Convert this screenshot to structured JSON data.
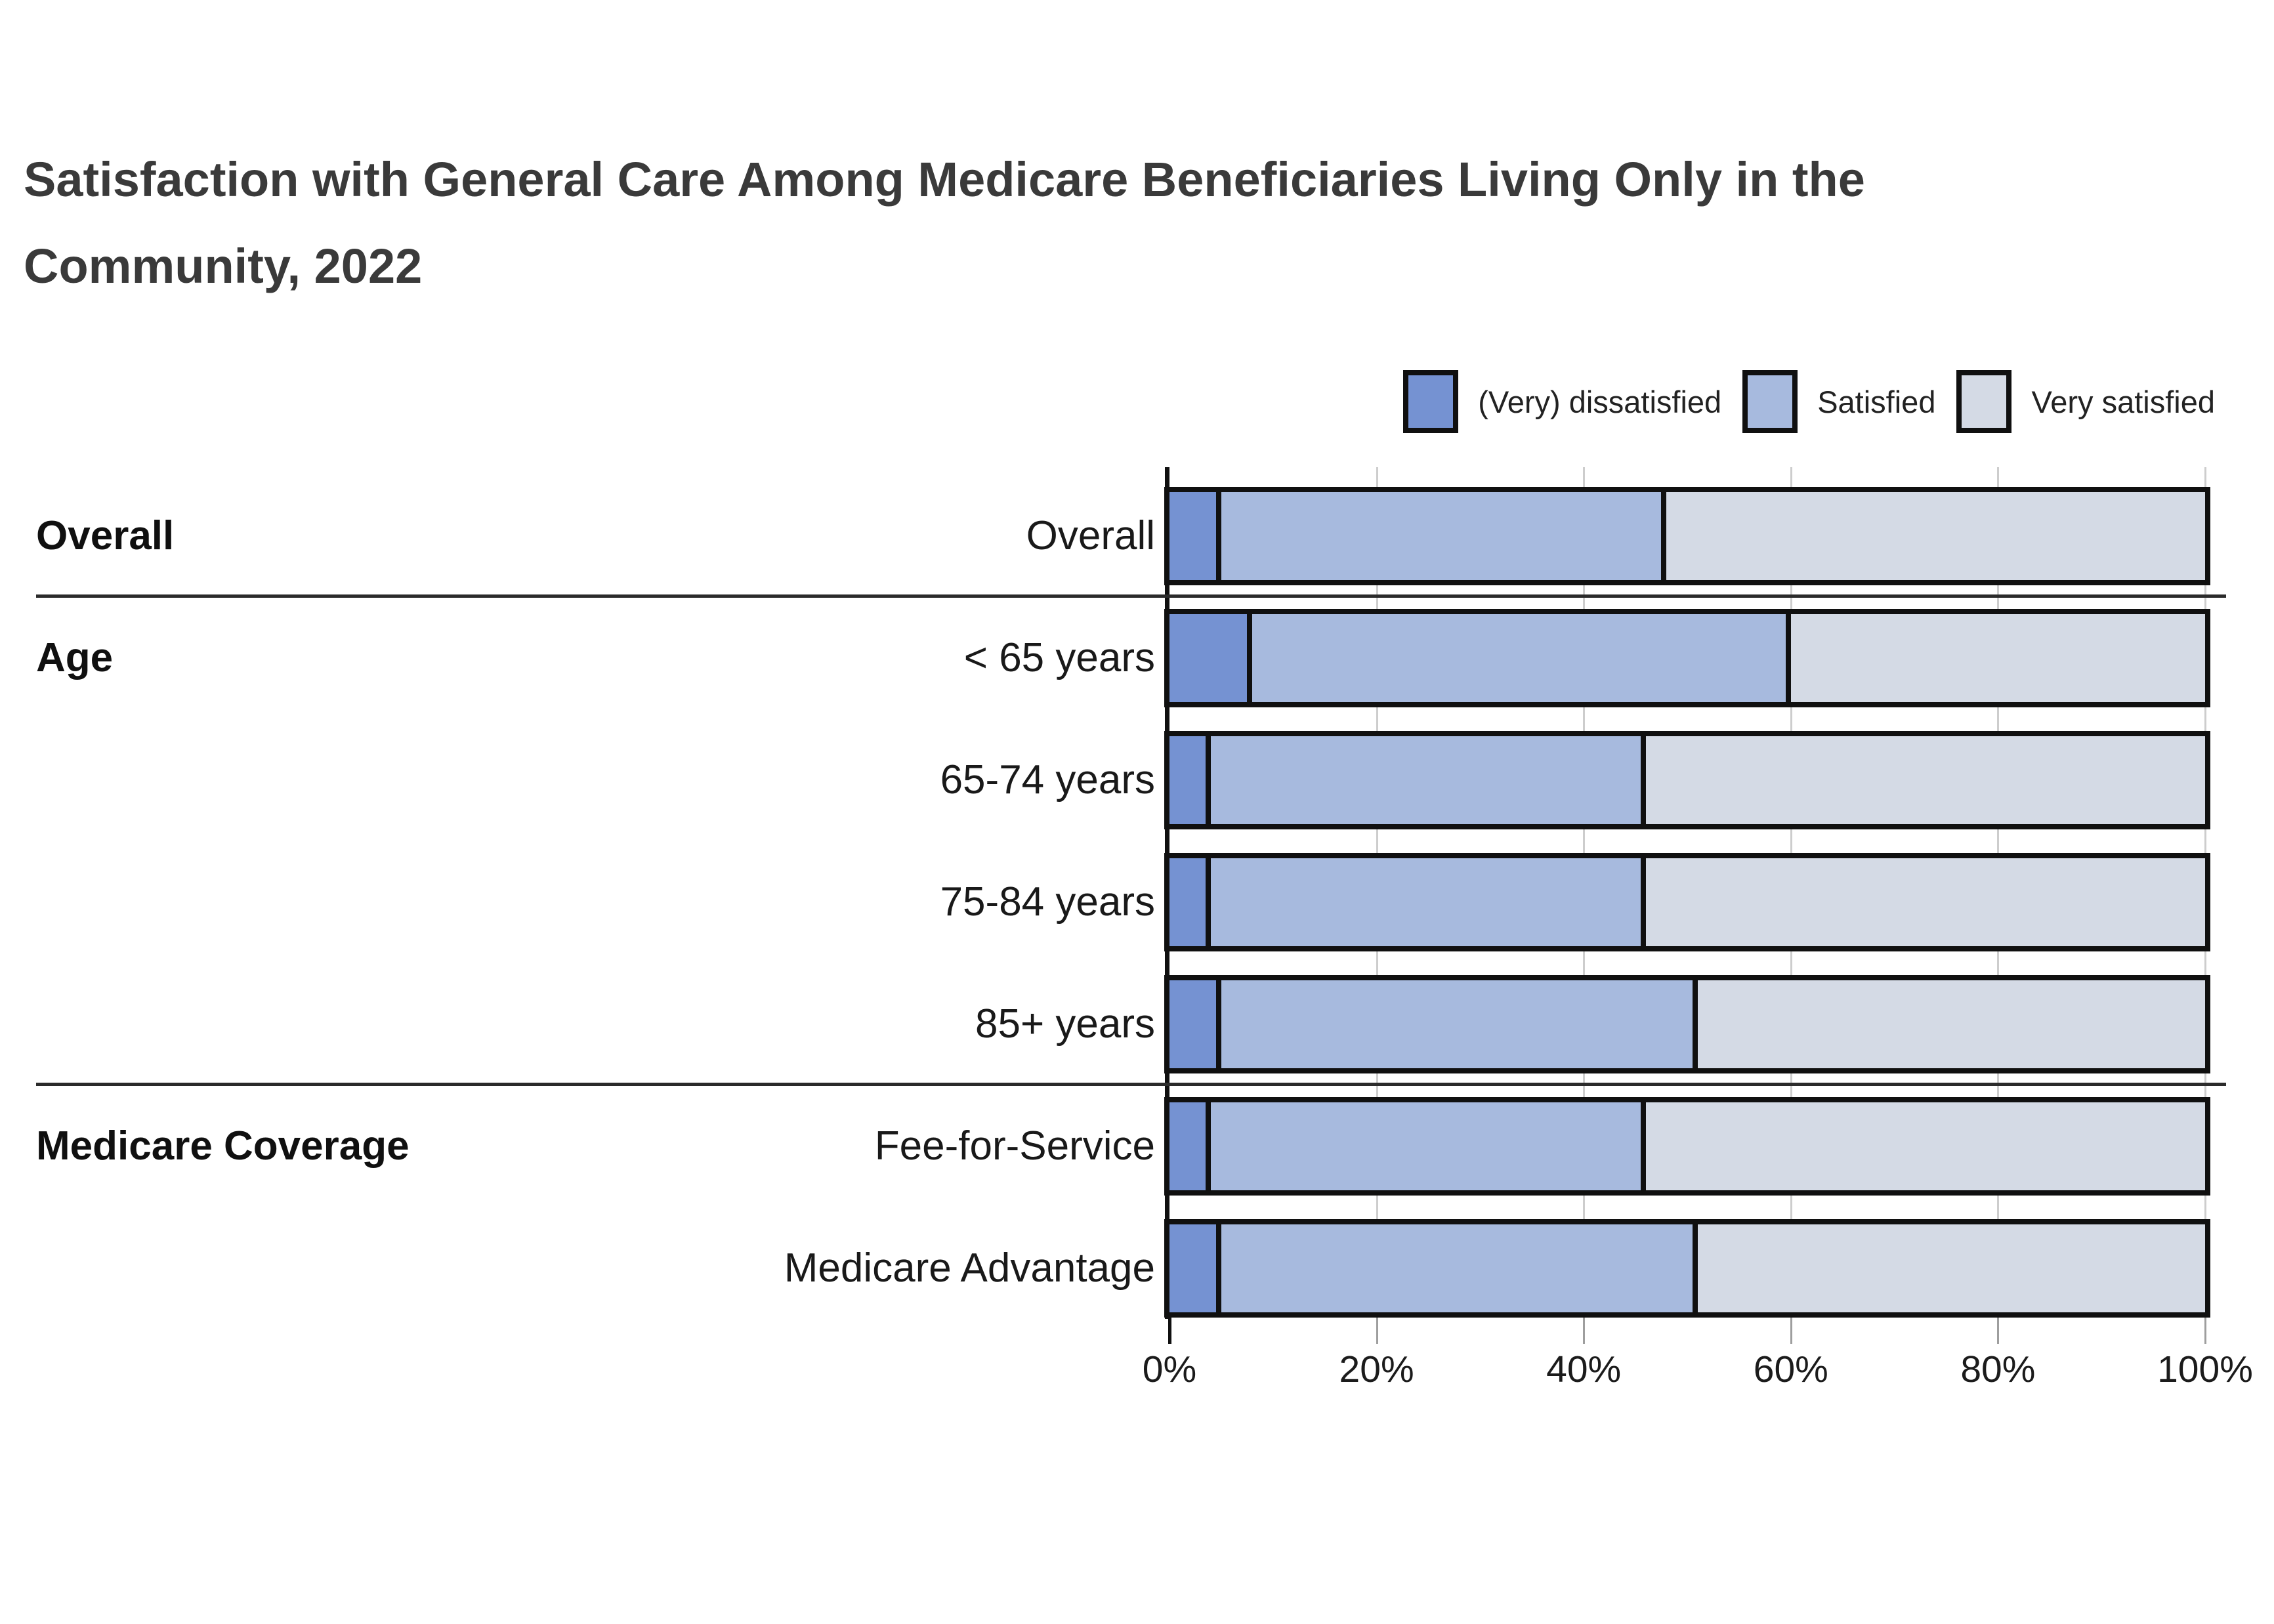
{
  "title": {
    "line1": "Satisfaction with General Care Among Medicare Beneficiaries Living Only in the",
    "line2": "Community, 2022",
    "full": "Satisfaction with General Care Among Medicare Beneficiaries Living Only in the Community, 2022"
  },
  "colors": {
    "dissatisfied": "#7592d2",
    "satisfied": "#a7bade",
    "very_satisfied": "#d4dae5",
    "bar_border": "#101010",
    "gridline": "#cdcdcd",
    "title_text": "#3a3a3a"
  },
  "chart_data": {
    "type": "bar",
    "stacked": true,
    "orientation": "horizontal",
    "title": "Satisfaction with General Care Among Medicare Beneficiaries Living Only in the Community, 2022",
    "categories": [
      "Overall",
      "< 65 years",
      "65-74 years",
      "75-84 years",
      "85+ years",
      "Fee-for-Service",
      "Medicare Advantage"
    ],
    "groups": [
      {
        "label": "Overall",
        "first_row": 0
      },
      {
        "label": "Age",
        "first_row": 1
      },
      {
        "label": "Medicare Coverage",
        "first_row": 5
      }
    ],
    "separators_after_rows": [
      0,
      4
    ],
    "series": [
      {
        "name": "(Very) dissatisfied",
        "color": "#7592d2",
        "values": [
          5,
          8,
          4,
          4,
          5,
          4,
          5
        ]
      },
      {
        "name": "Satisfied",
        "color": "#a7bade",
        "values": [
          43,
          52,
          42,
          42,
          46,
          42,
          46
        ]
      },
      {
        "name": "Very satisfied",
        "color": "#d4dae5",
        "values": [
          52,
          40,
          54,
          54,
          49,
          54,
          49
        ]
      }
    ],
    "xlim": [
      0,
      100
    ],
    "x_tick_labels": [
      "0%",
      "20%",
      "40%",
      "60%",
      "80%",
      "100%"
    ],
    "x_tick_values": [
      0,
      20,
      40,
      60,
      80,
      100
    ],
    "grid": "vertical",
    "legend_position": "top-right"
  }
}
